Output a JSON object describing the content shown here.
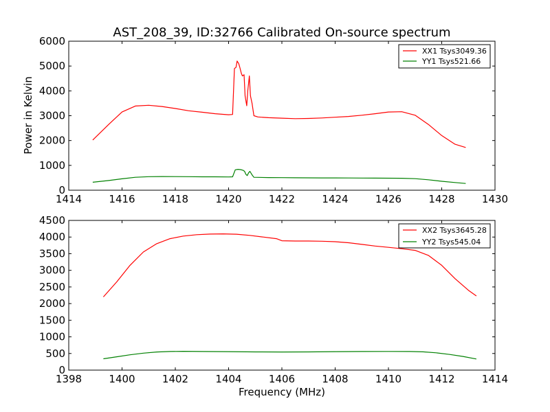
{
  "figure": {
    "title": "AST_208_39, ID:32766 Calibrated On-source spectrum"
  },
  "chart_data": [
    {
      "type": "line",
      "title": "AST_208_39, ID:32766 Calibrated On-source spectrum",
      "xlabel": "",
      "ylabel": "Power in Kelvin",
      "xlim": [
        1414,
        1430
      ],
      "ylim": [
        0,
        6000
      ],
      "xticks": [
        1414,
        1416,
        1418,
        1420,
        1422,
        1424,
        1426,
        1428,
        1430
      ],
      "yticks": [
        0,
        1000,
        2000,
        3000,
        4000,
        5000,
        6000
      ],
      "xtick_labels": [
        "1414",
        "1416",
        "1418",
        "1420",
        "1422",
        "1424",
        "1426",
        "1428",
        "1430"
      ],
      "ytick_labels": [
        "0",
        "1000",
        "2000",
        "3000",
        "4000",
        "5000",
        "6000"
      ],
      "grid": false,
      "legend_position": "top-right",
      "series": [
        {
          "name": "XX1 Tsys3049.36",
          "color": "#ff0000",
          "x": [
            1414.9,
            1415.5,
            1416.0,
            1416.5,
            1417.0,
            1417.5,
            1418.0,
            1418.5,
            1419.0,
            1419.5,
            1420.0,
            1420.15,
            1420.22,
            1420.28,
            1420.32,
            1420.38,
            1420.42,
            1420.48,
            1420.52,
            1420.58,
            1420.62,
            1420.68,
            1420.72,
            1420.78,
            1420.82,
            1420.88,
            1420.95,
            1421.1,
            1421.5,
            1422.0,
            1422.5,
            1423.0,
            1423.5,
            1424.0,
            1424.5,
            1425.0,
            1425.5,
            1426.0,
            1426.5,
            1427.0,
            1427.5,
            1428.0,
            1428.5,
            1428.9
          ],
          "y": [
            2020,
            2650,
            3150,
            3390,
            3420,
            3370,
            3290,
            3200,
            3140,
            3080,
            3040,
            3050,
            4900,
            4950,
            5200,
            5100,
            4950,
            4700,
            4600,
            4650,
            3800,
            3400,
            4000,
            4600,
            3800,
            3500,
            3000,
            2950,
            2920,
            2900,
            2880,
            2890,
            2910,
            2940,
            2970,
            3020,
            3080,
            3150,
            3160,
            3020,
            2650,
            2200,
            1850,
            1720
          ]
        },
        {
          "name": "YY1 Tsys521.66",
          "color": "#008000",
          "x": [
            1414.9,
            1415.5,
            1416.0,
            1416.5,
            1417.0,
            1417.5,
            1418.0,
            1418.5,
            1419.0,
            1419.5,
            1420.0,
            1420.15,
            1420.25,
            1420.35,
            1420.45,
            1420.55,
            1420.6,
            1420.65,
            1420.7,
            1420.75,
            1420.8,
            1420.88,
            1420.95,
            1421.5,
            1422.0,
            1422.5,
            1423.0,
            1423.5,
            1424.0,
            1424.5,
            1425.0,
            1425.5,
            1426.0,
            1426.5,
            1427.0,
            1427.5,
            1428.0,
            1428.5,
            1428.9
          ],
          "y": [
            320,
            390,
            460,
            520,
            545,
            550,
            548,
            545,
            540,
            538,
            535,
            540,
            820,
            840,
            830,
            800,
            760,
            640,
            590,
            700,
            760,
            620,
            520,
            510,
            505,
            500,
            498,
            495,
            495,
            493,
            490,
            488,
            485,
            480,
            465,
            420,
            360,
            310,
            270
          ]
        }
      ]
    },
    {
      "type": "line",
      "title": "",
      "xlabel": "Frequency (MHz)",
      "ylabel": "",
      "xlim": [
        1398,
        1414
      ],
      "ylim": [
        0,
        4500
      ],
      "xticks": [
        1398,
        1400,
        1402,
        1404,
        1406,
        1408,
        1410,
        1412,
        1414
      ],
      "yticks": [
        0,
        500,
        1000,
        1500,
        2000,
        2500,
        3000,
        3500,
        4000,
        4500
      ],
      "xtick_labels": [
        "1398",
        "1400",
        "1402",
        "1404",
        "1406",
        "1408",
        "1410",
        "1412",
        "1414"
      ],
      "ytick_labels": [
        "0",
        "500",
        "1000",
        "1500",
        "2000",
        "2500",
        "3000",
        "3500",
        "4000",
        "4500"
      ],
      "grid": false,
      "legend_position": "top-right",
      "series": [
        {
          "name": "XX2 Tsys3645.28",
          "color": "#ff0000",
          "x": [
            1399.3,
            1399.8,
            1400.3,
            1400.8,
            1401.3,
            1401.8,
            1402.3,
            1402.8,
            1403.3,
            1403.8,
            1404.3,
            1404.8,
            1405.3,
            1405.8,
            1406.0,
            1406.5,
            1407.0,
            1407.5,
            1408.0,
            1408.5,
            1409.0,
            1409.5,
            1410.0,
            1410.5,
            1411.0,
            1411.5,
            1412.0,
            1412.5,
            1413.0,
            1413.3
          ],
          "y": [
            2200,
            2650,
            3150,
            3550,
            3800,
            3950,
            4030,
            4070,
            4090,
            4095,
            4085,
            4050,
            4000,
            3950,
            3890,
            3880,
            3880,
            3875,
            3860,
            3830,
            3780,
            3730,
            3690,
            3650,
            3600,
            3450,
            3150,
            2750,
            2400,
            2230
          ]
        },
        {
          "name": "YY2 Tsys545.04",
          "color": "#008000",
          "x": [
            1399.3,
            1399.8,
            1400.3,
            1400.8,
            1401.3,
            1401.8,
            1402.3,
            1403.0,
            1404.0,
            1405.0,
            1406.0,
            1407.0,
            1408.0,
            1409.0,
            1410.0,
            1410.8,
            1411.3,
            1411.8,
            1412.3,
            1412.8,
            1413.3
          ],
          "y": [
            340,
            400,
            460,
            510,
            545,
            560,
            565,
            560,
            555,
            548,
            545,
            548,
            555,
            560,
            562,
            560,
            550,
            520,
            470,
            410,
            335
          ]
        }
      ]
    }
  ]
}
